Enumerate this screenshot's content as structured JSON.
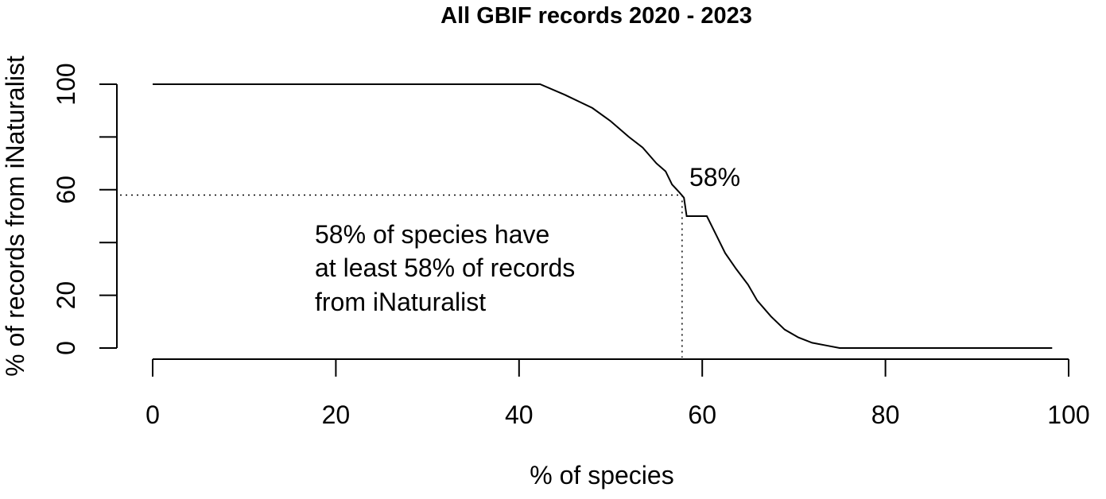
{
  "chart_data": {
    "type": "line",
    "title": "All GBIF records 2020 - 2023",
    "xlabel": "% of species",
    "ylabel": "% of records from iNaturalist",
    "xlim": [
      0,
      100
    ],
    "ylim": [
      0,
      100
    ],
    "x_ticks": [
      "0",
      "20",
      "40",
      "60",
      "80",
      "100"
    ],
    "y_ticks": [
      "0",
      "20",
      "60",
      "100"
    ],
    "y_minor_ticks": [
      40,
      80
    ],
    "grid": false,
    "series": [
      {
        "x": [
          0,
          42.3,
          45,
          48,
          50,
          52,
          53.5,
          55,
          56,
          56.7,
          57.5,
          58,
          58.3,
          60.5,
          61.5,
          62.5,
          63.7,
          65,
          66,
          67.5,
          69,
          70.5,
          72,
          73.5,
          75,
          98.2
        ],
        "y": [
          100,
          100,
          96,
          91,
          86,
          80,
          76,
          70,
          67,
          62,
          59,
          57,
          50,
          50,
          43,
          36,
          30,
          24,
          18,
          12,
          7,
          4,
          2,
          1,
          0,
          0
        ]
      }
    ],
    "reference_point": {
      "x": 57.8,
      "y": 58
    },
    "annotations": {
      "point_label": "58%",
      "note_lines": [
        "58% of species have",
        "at least 58% of records",
        "from iNaturalist"
      ]
    }
  }
}
